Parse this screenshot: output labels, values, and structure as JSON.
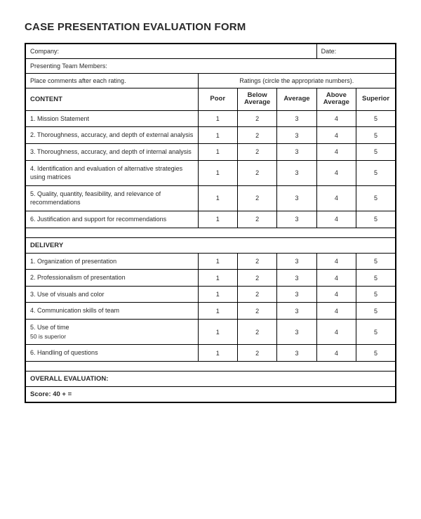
{
  "title": "CASE PRESENTATION EVALUATION FORM",
  "header": {
    "company_label": "Company:",
    "date_label": "Date:",
    "team_label": "Presenting Team Members:",
    "comment_note": "Place comments after each rating.",
    "ratings_note": "Ratings (circle the appropriate numbers)."
  },
  "columns": {
    "poor": "Poor",
    "below_avg": "Below\nAverage",
    "avg": "Average",
    "above_avg": "Above\nAverage",
    "superior": "Superior"
  },
  "scale": {
    "v1": "1",
    "v2": "2",
    "v3": "3",
    "v4": "4",
    "v5": "5"
  },
  "sections": {
    "content": {
      "header": "CONTENT",
      "items": {
        "i1": "1. Mission Statement",
        "i2": "2. Thoroughness, accuracy, and depth of external analysis",
        "i3": "3. Thoroughness, accuracy, and depth of internal analysis",
        "i4": "4. Identification and evaluation of alternative strategies using matrices",
        "i5": "5. Quality, quantity, feasibility, and relevance of recommendations",
        "i6": "6. Justification and support for recommendations"
      }
    },
    "delivery": {
      "header": "DELIVERY",
      "items": {
        "i1": "1. Organization of presentation",
        "i2": "2. Professionalism of presentation",
        "i3": "3. Use of visuals and color",
        "i4": "4. Communication skills of team",
        "i5": "5. Use of time",
        "i5_note": "50 is superior",
        "i6": "6. Handling of questions"
      }
    }
  },
  "overall": {
    "header": "OVERALL EVALUATION:",
    "score": "Score:  40 + ="
  }
}
